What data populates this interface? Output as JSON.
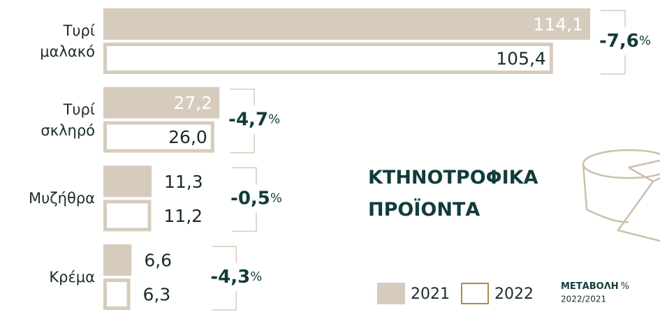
{
  "chart_data": {
    "type": "bar",
    "orientation": "horizontal",
    "title": "ΚΤΗΝΟΤΡΟΦΙΚΑ ΠΡΟΪΟΝΤΑ",
    "categories": [
      "Τυρί μαλακό",
      "Τυρί σκληρό",
      "Μυζήθρα",
      "Κρέμα"
    ],
    "series": [
      {
        "name": "2021",
        "color": "#d6ccbe",
        "values": [
          114.1,
          27.2,
          11.3,
          6.6
        ],
        "value_labels": [
          "114,1",
          "27,2",
          "11,3",
          "6,6"
        ]
      },
      {
        "name": "2022",
        "color": "#d6ccbe",
        "values": [
          105.4,
          26.0,
          11.2,
          6.3
        ],
        "value_labels": [
          "105,4",
          "26,0",
          "11,2",
          "6,3"
        ]
      }
    ],
    "change": {
      "values": [
        -7.6,
        -4.7,
        -0.5,
        -4.3
      ],
      "value_labels": [
        "-7,6",
        "-4,7",
        "-0,5",
        "-4,3"
      ],
      "unit": "%",
      "color": "#123c3a"
    },
    "change_legend": {
      "label": "ΜΕΤΑΒΟΛΗ",
      "unit": "%",
      "period": "2022/2021"
    }
  }
}
